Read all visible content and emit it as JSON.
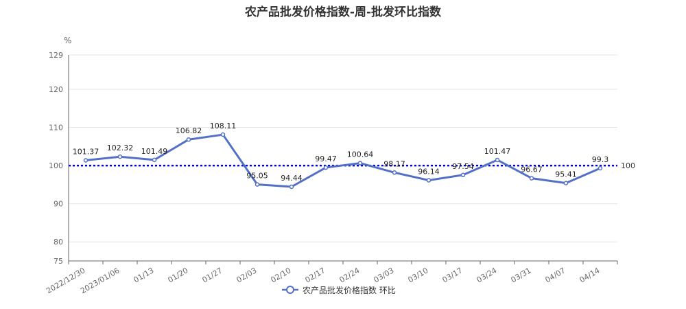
{
  "chart_data": {
    "type": "line",
    "title": "农产品批发价格指数-周-批发环比指数",
    "unit": "%",
    "categories": [
      "2022/12/30",
      "2023/01/06",
      "01/13",
      "01/20",
      "01/27",
      "02/03",
      "02/10",
      "02/17",
      "02/24",
      "03/03",
      "03/10",
      "03/17",
      "03/24",
      "03/31",
      "04/07",
      "04/14"
    ],
    "series": [
      {
        "name": "农产品批发价格指数 环比",
        "values": [
          101.37,
          102.32,
          101.49,
          106.82,
          108.11,
          95.05,
          94.44,
          99.47,
          100.64,
          98.17,
          96.14,
          97.54,
          101.47,
          96.67,
          95.41,
          99.3
        ],
        "labels": [
          "101.37",
          "102.32",
          "101.49",
          "106.82",
          "108.11",
          "95.05",
          "94.44",
          "99.47",
          "100.64",
          "98.17",
          "96.14",
          "97.54",
          "101.47",
          "96.67",
          "95.41",
          "99.3"
        ],
        "color": "#5470c6"
      }
    ],
    "y_ticks": [
      75,
      80,
      90,
      100,
      110,
      120,
      129
    ],
    "ylim": [
      75,
      129
    ],
    "reference_line": {
      "value": 100,
      "label": "100",
      "color": "#0000cc"
    },
    "grid": true,
    "legend_position": "bottom-center"
  }
}
